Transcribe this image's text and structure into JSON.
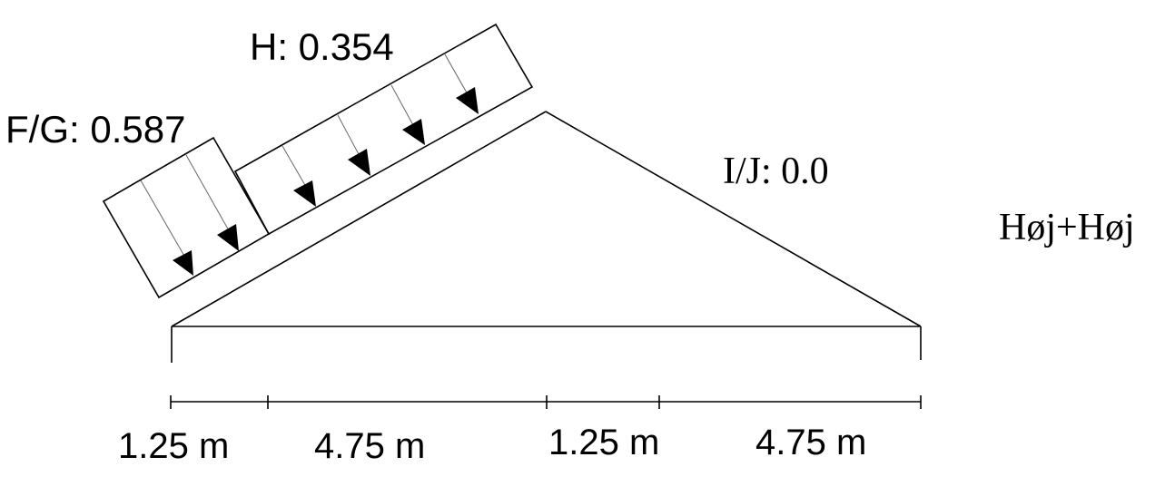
{
  "labels": {
    "zone_fg": "F/G: 0.587",
    "zone_h": "H: 0.354",
    "zone_ij": "I/J: 0.0",
    "roof_type": "Høj+Høj"
  },
  "dimensions": [
    "1.25 m",
    "4.75 m",
    "1.25 m",
    "4.75 m"
  ],
  "colors": {
    "line": "#000000",
    "thin_line": "#555555",
    "background": "#ffffff"
  }
}
